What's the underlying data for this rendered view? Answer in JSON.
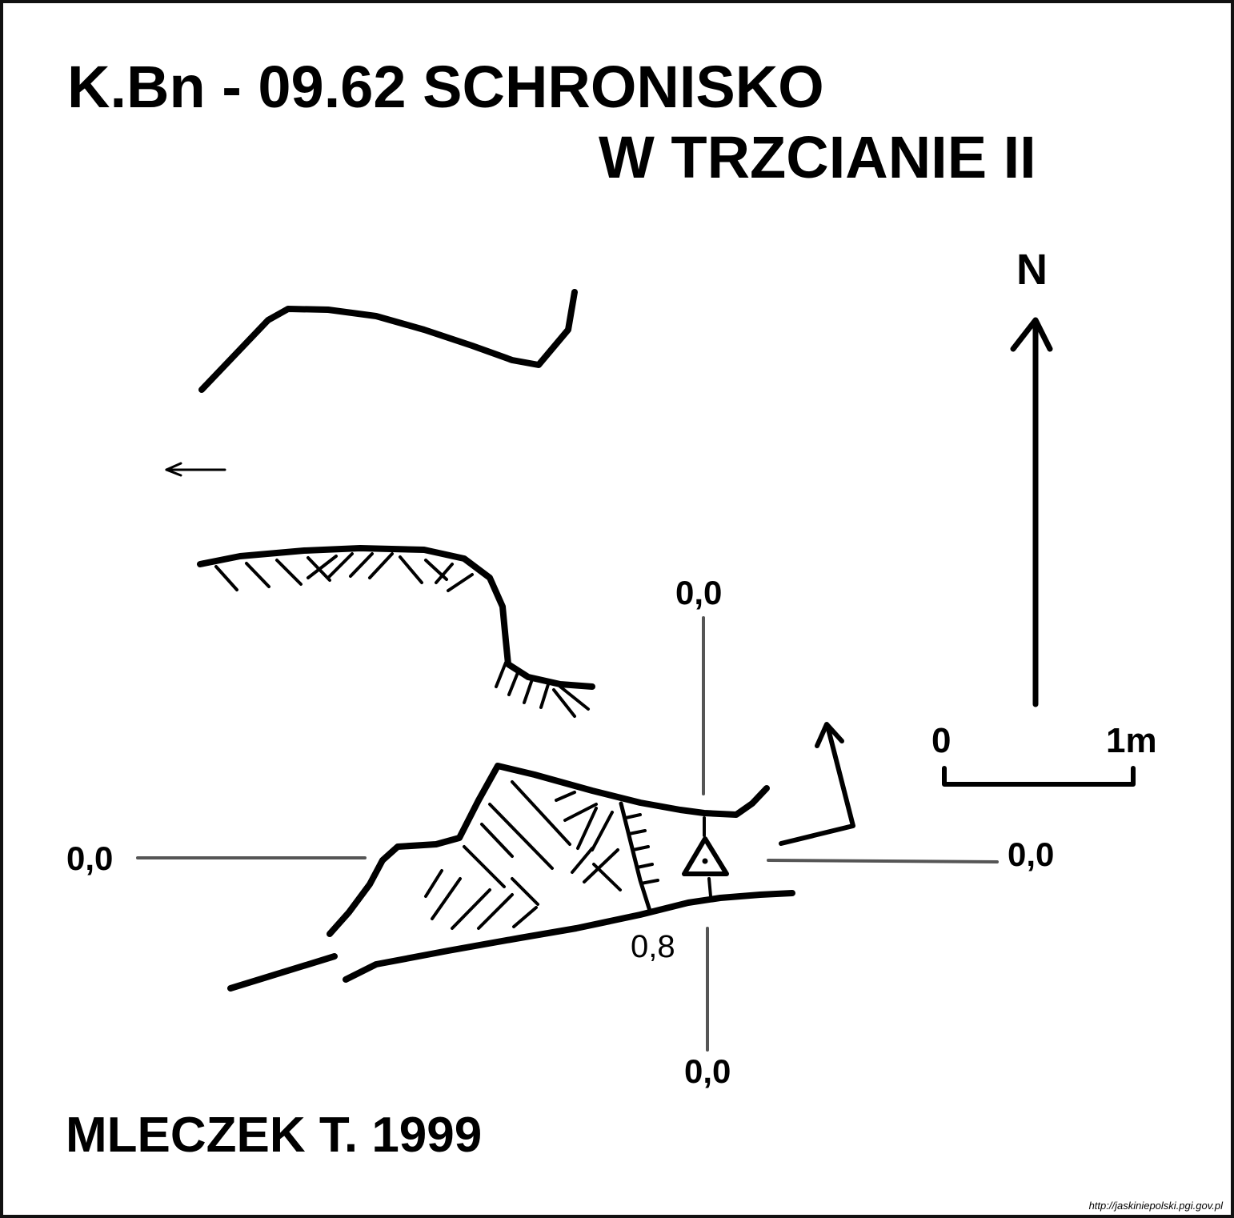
{
  "title": {
    "line1": "K.Bn - 09.62  SCHRONISKO",
    "line2": "W TRZCIANIE II"
  },
  "author": "MLECZEK  T.  1999",
  "north_label": "N",
  "section_labels": {
    "top": "0,0",
    "bottom": "0,0",
    "left": "0,0",
    "right": "0,0"
  },
  "depth_label": "0,8",
  "scale": {
    "start": "0",
    "end": "1m"
  },
  "source_url": "http://jaskiniepolski.pgi.gov.pl",
  "colors": {
    "ink": "#000000",
    "section_line": "#555555"
  }
}
